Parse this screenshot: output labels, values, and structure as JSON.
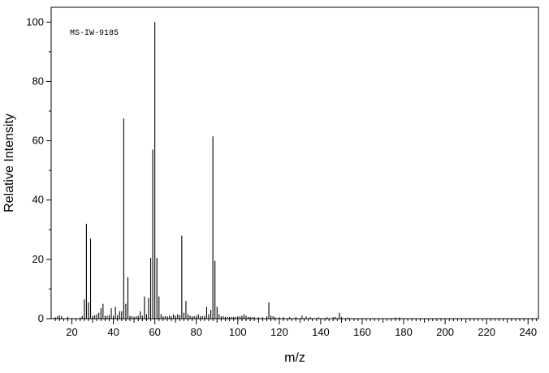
{
  "chart_data": {
    "type": "bar",
    "annotation": "MS-IW-9185",
    "xlabel": "m/z",
    "ylabel": "Relative Intensity",
    "xlim": [
      10,
      245
    ],
    "ylim": [
      0,
      105
    ],
    "x_ticks": [
      20,
      40,
      60,
      80,
      100,
      120,
      140,
      160,
      180,
      200,
      220,
      240
    ],
    "y_ticks": [
      0,
      20,
      40,
      60,
      80,
      100
    ],
    "grid": false,
    "peaks": [
      {
        "mz": 12,
        "intensity": 0.5
      },
      {
        "mz": 13,
        "intensity": 0.8
      },
      {
        "mz": 14,
        "intensity": 1.2
      },
      {
        "mz": 15,
        "intensity": 0.9
      },
      {
        "mz": 18,
        "intensity": 0.6
      },
      {
        "mz": 24,
        "intensity": 0.4
      },
      {
        "mz": 25,
        "intensity": 0.9
      },
      {
        "mz": 26,
        "intensity": 6.5
      },
      {
        "mz": 27,
        "intensity": 32.0
      },
      {
        "mz": 28,
        "intensity": 5.5
      },
      {
        "mz": 29,
        "intensity": 27.0
      },
      {
        "mz": 30,
        "intensity": 1.0
      },
      {
        "mz": 31,
        "intensity": 1.2
      },
      {
        "mz": 32,
        "intensity": 1.5
      },
      {
        "mz": 33,
        "intensity": 2.0
      },
      {
        "mz": 34,
        "intensity": 3.5
      },
      {
        "mz": 35,
        "intensity": 5.0
      },
      {
        "mz": 36,
        "intensity": 1.0
      },
      {
        "mz": 37,
        "intensity": 1.0
      },
      {
        "mz": 38,
        "intensity": 1.2
      },
      {
        "mz": 39,
        "intensity": 3.5
      },
      {
        "mz": 40,
        "intensity": 1.0
      },
      {
        "mz": 41,
        "intensity": 4.0
      },
      {
        "mz": 42,
        "intensity": 1.2
      },
      {
        "mz": 43,
        "intensity": 2.5
      },
      {
        "mz": 44,
        "intensity": 2.5
      },
      {
        "mz": 45,
        "intensity": 67.5
      },
      {
        "mz": 46,
        "intensity": 5.0
      },
      {
        "mz": 47,
        "intensity": 14.0
      },
      {
        "mz": 48,
        "intensity": 1.0
      },
      {
        "mz": 49,
        "intensity": 0.8
      },
      {
        "mz": 50,
        "intensity": 0.6
      },
      {
        "mz": 51,
        "intensity": 0.8
      },
      {
        "mz": 52,
        "intensity": 1.0
      },
      {
        "mz": 53,
        "intensity": 2.5
      },
      {
        "mz": 54,
        "intensity": 1.0
      },
      {
        "mz": 55,
        "intensity": 7.5
      },
      {
        "mz": 56,
        "intensity": 1.5
      },
      {
        "mz": 57,
        "intensity": 7.0
      },
      {
        "mz": 58,
        "intensity": 20.5
      },
      {
        "mz": 59,
        "intensity": 57.0
      },
      {
        "mz": 60,
        "intensity": 100.0
      },
      {
        "mz": 61,
        "intensity": 20.5
      },
      {
        "mz": 62,
        "intensity": 7.5
      },
      {
        "mz": 63,
        "intensity": 1.5
      },
      {
        "mz": 64,
        "intensity": 0.8
      },
      {
        "mz": 65,
        "intensity": 0.8
      },
      {
        "mz": 66,
        "intensity": 0.8
      },
      {
        "mz": 67,
        "intensity": 1.0
      },
      {
        "mz": 68,
        "intensity": 0.8
      },
      {
        "mz": 69,
        "intensity": 1.5
      },
      {
        "mz": 70,
        "intensity": 1.0
      },
      {
        "mz": 71,
        "intensity": 1.5
      },
      {
        "mz": 72,
        "intensity": 1.2
      },
      {
        "mz": 73,
        "intensity": 28.0
      },
      {
        "mz": 74,
        "intensity": 2.0
      },
      {
        "mz": 75,
        "intensity": 6.0
      },
      {
        "mz": 76,
        "intensity": 1.5
      },
      {
        "mz": 77,
        "intensity": 1.0
      },
      {
        "mz": 78,
        "intensity": 0.8
      },
      {
        "mz": 79,
        "intensity": 0.8
      },
      {
        "mz": 80,
        "intensity": 1.0
      },
      {
        "mz": 81,
        "intensity": 1.5
      },
      {
        "mz": 82,
        "intensity": 0.8
      },
      {
        "mz": 83,
        "intensity": 0.8
      },
      {
        "mz": 84,
        "intensity": 1.0
      },
      {
        "mz": 85,
        "intensity": 4.0
      },
      {
        "mz": 86,
        "intensity": 1.5
      },
      {
        "mz": 87,
        "intensity": 3.0
      },
      {
        "mz": 88,
        "intensity": 61.5
      },
      {
        "mz": 89,
        "intensity": 19.5
      },
      {
        "mz": 90,
        "intensity": 4.0
      },
      {
        "mz": 91,
        "intensity": 1.5
      },
      {
        "mz": 92,
        "intensity": 0.8
      },
      {
        "mz": 93,
        "intensity": 0.8
      },
      {
        "mz": 94,
        "intensity": 0.6
      },
      {
        "mz": 95,
        "intensity": 0.6
      },
      {
        "mz": 96,
        "intensity": 0.6
      },
      {
        "mz": 97,
        "intensity": 0.6
      },
      {
        "mz": 98,
        "intensity": 0.6
      },
      {
        "mz": 99,
        "intensity": 0.6
      },
      {
        "mz": 100,
        "intensity": 0.8
      },
      {
        "mz": 101,
        "intensity": 0.8
      },
      {
        "mz": 102,
        "intensity": 1.0
      },
      {
        "mz": 103,
        "intensity": 1.5
      },
      {
        "mz": 104,
        "intensity": 1.0
      },
      {
        "mz": 105,
        "intensity": 0.6
      },
      {
        "mz": 106,
        "intensity": 0.6
      },
      {
        "mz": 107,
        "intensity": 0.5
      },
      {
        "mz": 108,
        "intensity": 0.5
      },
      {
        "mz": 110,
        "intensity": 0.5
      },
      {
        "mz": 112,
        "intensity": 0.5
      },
      {
        "mz": 114,
        "intensity": 0.8
      },
      {
        "mz": 115,
        "intensity": 5.5
      },
      {
        "mz": 116,
        "intensity": 1.0
      },
      {
        "mz": 117,
        "intensity": 0.8
      },
      {
        "mz": 118,
        "intensity": 0.5
      },
      {
        "mz": 120,
        "intensity": 0.5
      },
      {
        "mz": 122,
        "intensity": 0.5
      },
      {
        "mz": 125,
        "intensity": 0.5
      },
      {
        "mz": 128,
        "intensity": 0.5
      },
      {
        "mz": 131,
        "intensity": 1.0
      },
      {
        "mz": 133,
        "intensity": 0.8
      },
      {
        "mz": 135,
        "intensity": 0.6
      },
      {
        "mz": 139,
        "intensity": 0.5
      },
      {
        "mz": 143,
        "intensity": 0.5
      },
      {
        "mz": 146,
        "intensity": 0.5
      },
      {
        "mz": 147,
        "intensity": 0.6
      },
      {
        "mz": 149,
        "intensity": 2.0
      },
      {
        "mz": 150,
        "intensity": 0.6
      },
      {
        "mz": 153,
        "intensity": 0.4
      },
      {
        "mz": 176,
        "intensity": 0.4
      },
      {
        "mz": 178,
        "intensity": 0.4
      }
    ],
    "colors": {
      "bars": "#000000",
      "axes": "#000000",
      "background": "#ffffff"
    }
  }
}
